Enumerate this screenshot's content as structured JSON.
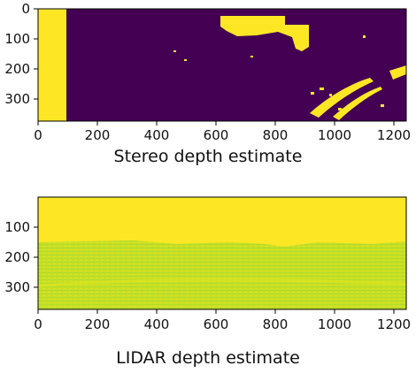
{
  "panels": [
    {
      "caption": "Stereo depth estimate",
      "x_ticks": [
        "0",
        "200",
        "400",
        "600",
        "800",
        "1000",
        "1200"
      ],
      "y_ticks": [
        "0",
        "100",
        "200",
        "300"
      ],
      "colors": {
        "background": "#440154",
        "highlight": "#fde725"
      }
    },
    {
      "caption": "LIDAR depth estimate",
      "x_ticks": [
        "0",
        "200",
        "400",
        "600",
        "800",
        "1000",
        "1200"
      ],
      "y_ticks": [
        "100",
        "200",
        "300"
      ],
      "colors": {
        "top": "#fde725",
        "lidar_a": "#cde11d",
        "lidar_b": "#b5de2b"
      }
    }
  ]
}
